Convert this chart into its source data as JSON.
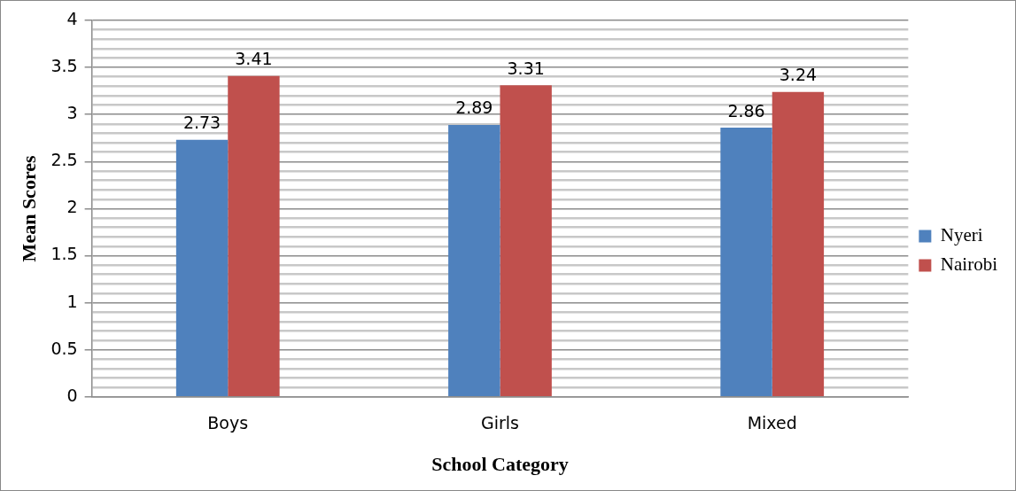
{
  "chart_data": {
    "type": "bar",
    "xlabel": "School Category",
    "ylabel": "Mean Scores",
    "categories": [
      "Boys",
      "Girls",
      "Mixed"
    ],
    "series": [
      {
        "name": "Nyeri",
        "color": "#4f81bd",
        "values": [
          2.73,
          2.89,
          2.86
        ]
      },
      {
        "name": "Nairobi",
        "color": "#c0504d",
        "values": [
          3.41,
          3.31,
          3.24
        ]
      }
    ],
    "ylim": [
      0,
      4
    ],
    "yticks": [
      0,
      {
        "value": 0.1,
        "label": null
      },
      {
        "value": 0.2,
        "label": null
      },
      {
        "value": 0.3,
        "label": null
      },
      {
        "value": 0.4,
        "label": null
      },
      0.5,
      {
        "value": 0.6,
        "label": null
      },
      {
        "value": 0.7,
        "label": null
      },
      {
        "value": 0.8,
        "label": null
      },
      {
        "value": 0.9,
        "label": null
      },
      1,
      {
        "value": 1.1,
        "label": null
      },
      {
        "value": 1.2,
        "label": null
      },
      {
        "value": 1.3,
        "label": null
      },
      {
        "value": 1.4,
        "label": null
      },
      1.5,
      {
        "value": 1.6,
        "label": null
      },
      {
        "value": 1.7,
        "label": null
      },
      {
        "value": 1.8,
        "label": null
      },
      {
        "value": 1.9,
        "label": null
      },
      2,
      {
        "value": 2.1,
        "label": null
      },
      {
        "value": 2.2,
        "label": null
      },
      {
        "value": 2.3,
        "label": null
      },
      {
        "value": 2.4,
        "label": null
      },
      2.5,
      {
        "value": 2.6,
        "label": null
      },
      {
        "value": 2.7,
        "label": null
      },
      {
        "value": 2.8,
        "label": null
      },
      {
        "value": 2.9,
        "label": null
      },
      3,
      {
        "value": 3.1,
        "label": null
      },
      {
        "value": 3.2,
        "label": null
      },
      {
        "value": 3.3,
        "label": null
      },
      {
        "value": 3.4,
        "label": null
      },
      3.5,
      {
        "value": 3.6,
        "label": null
      },
      {
        "value": 3.7,
        "label": null
      },
      {
        "value": 3.8,
        "label": null
      },
      {
        "value": 3.9,
        "label": null
      },
      4
    ],
    "grid": true,
    "legend": "right",
    "data_labels": true
  }
}
